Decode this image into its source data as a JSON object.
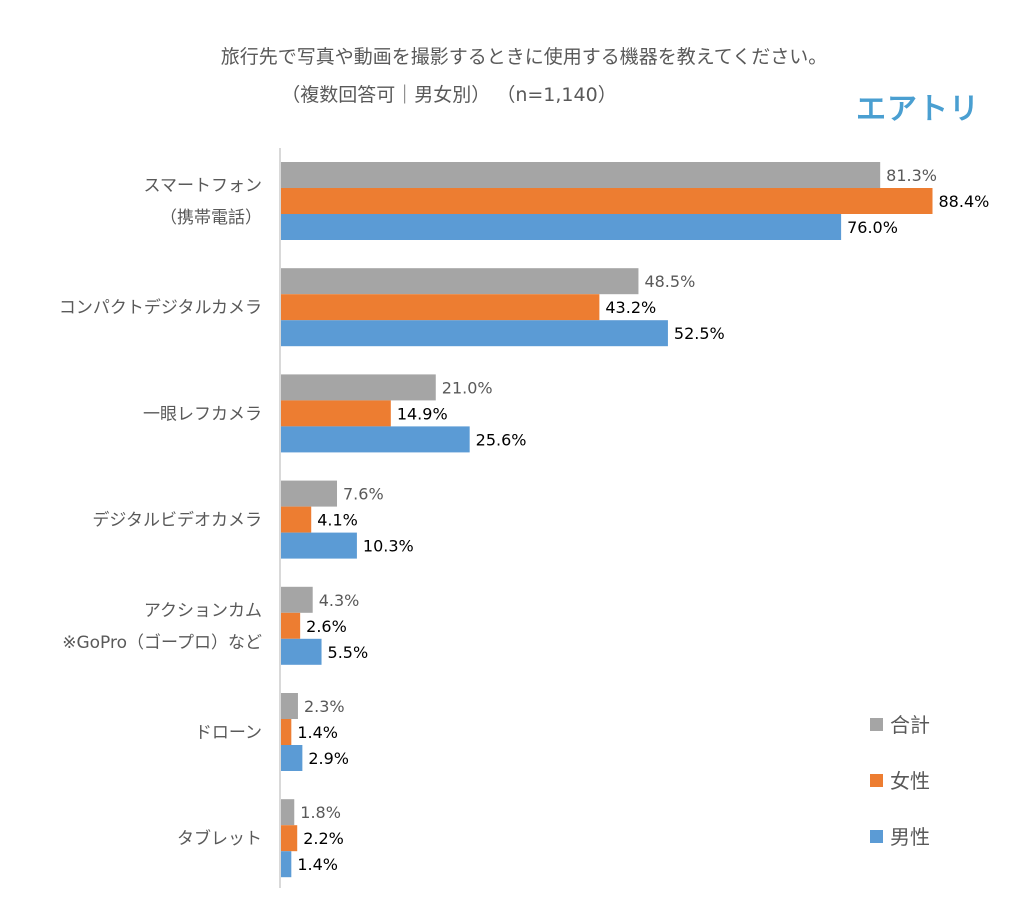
{
  "brand": {
    "logo_text": "エアトリ"
  },
  "chart_data": {
    "type": "bar",
    "orientation": "horizontal",
    "title": "旅行先で写真や動画を撮影するときに使用する機器を教えてください。",
    "subtitle": "（複数回答可｜男女別） （n=1,140）",
    "xlabel": "",
    "ylabel": "",
    "xlim": [
      0,
      90
    ],
    "grid": false,
    "legend_position": "bottom-right",
    "categories": [
      [
        "スマートフォン",
        "（携帯電話）"
      ],
      [
        "コンパクトデジタルカメラ"
      ],
      [
        "一眼レフカメラ"
      ],
      [
        "デジタルビデオカメラ"
      ],
      [
        "アクションカム",
        "※GoPro（ゴープロ）など"
      ],
      [
        "ドローン"
      ],
      [
        "タブレット"
      ]
    ],
    "series": [
      {
        "name": "合計",
        "color": "#a5a5a5",
        "label_color": "#595959",
        "values": [
          81.3,
          48.5,
          21.0,
          7.6,
          4.3,
          2.3,
          1.8
        ],
        "labels": [
          "81.3%",
          "48.5%",
          "21.0%",
          "7.6%",
          "4.3%",
          "2.3%",
          "1.8%"
        ]
      },
      {
        "name": "女性",
        "color": "#ed7d31",
        "label_color": "#000000",
        "values": [
          88.4,
          43.2,
          14.9,
          4.1,
          2.6,
          1.4,
          2.2
        ],
        "labels": [
          "88.4%",
          "43.2%",
          "14.9%",
          "4.1%",
          "2.6%",
          "1.4%",
          "2.2%"
        ]
      },
      {
        "name": "男性",
        "color": "#5b9bd5",
        "label_color": "#000000",
        "values": [
          76.0,
          52.5,
          25.6,
          10.3,
          5.5,
          2.9,
          1.4
        ],
        "labels": [
          "76.0%",
          "52.5%",
          "25.6%",
          "10.3%",
          "5.5%",
          "2.9%",
          "1.4%"
        ]
      }
    ]
  }
}
